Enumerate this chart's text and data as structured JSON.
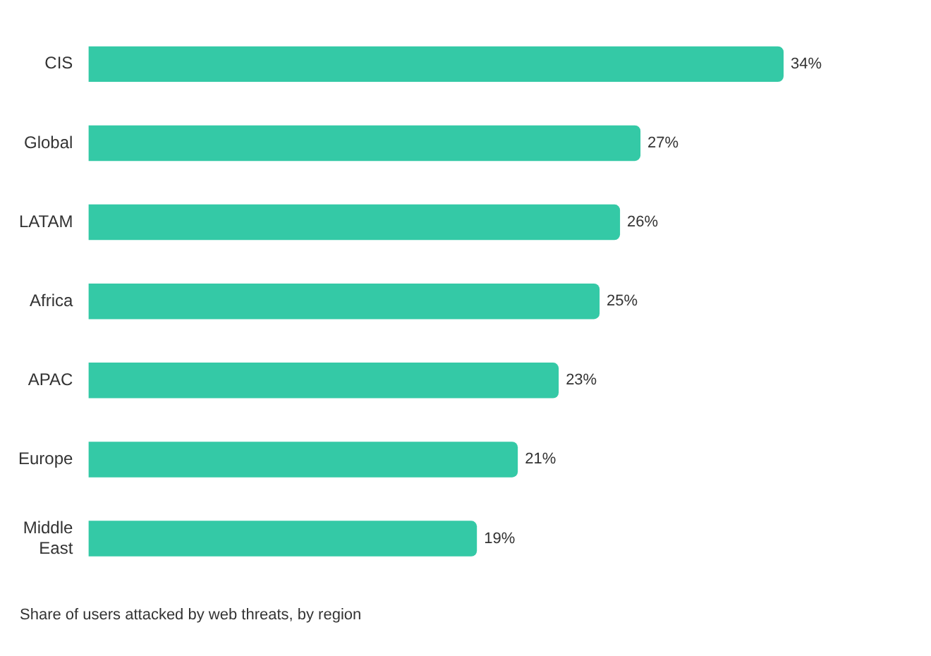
{
  "chart_data": {
    "type": "bar",
    "orientation": "horizontal",
    "categories": [
      "CIS",
      "Global",
      "LATAM",
      "Africa",
      "APAC",
      "Europe",
      "Middle East"
    ],
    "values": [
      34,
      27,
      26,
      25,
      23,
      21,
      19
    ],
    "color": "#34c9a6",
    "value_labels": [
      "34%",
      "27%",
      "26%",
      "25%",
      "23%",
      "21%",
      "19%"
    ],
    "legend": false,
    "tick_labels": "y",
    "annotations": [
      "Share of users attacked by web threats, by region"
    ]
  }
}
